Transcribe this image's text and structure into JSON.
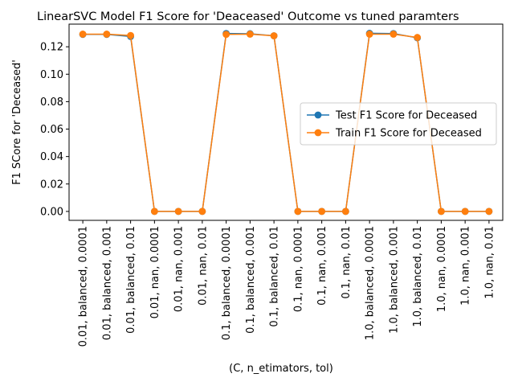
{
  "chart_data": {
    "type": "line",
    "title": "LinearSVC  Model F1 Score for 'Deaceased' Outcome vs tuned paramters",
    "xlabel": "(C, n_etimators, tol)",
    "ylabel": "F1 SCore for 'Deceased'",
    "ylim": [
      -0.0065,
      0.1365
    ],
    "yticks": [
      0.0,
      0.02,
      0.04,
      0.06,
      0.08,
      0.1,
      0.12
    ],
    "ytick_labels": [
      "0.00",
      "0.02",
      "0.04",
      "0.06",
      "0.08",
      "0.10",
      "0.12"
    ],
    "categories": [
      "0.01, balanced, 0.0001",
      "0.01, balanced, 0.001",
      "0.01, balanced, 0.01",
      "0.01, nan, 0.0001",
      "0.01, nan, 0.001",
      "0.01, nan, 0.01",
      "0.1, balanced, 0.0001",
      "0.1, balanced, 0.001",
      "0.1, balanced, 0.01",
      "0.1, nan, 0.0001",
      "0.1, nan, 0.001",
      "0.1, nan, 0.01",
      "1.0, balanced, 0.0001",
      "1.0, balanced, 0.001",
      "1.0, balanced, 0.01",
      "1.0, nan, 0.0001",
      "1.0, nan, 0.001",
      "1.0, nan, 0.01"
    ],
    "series": [
      {
        "name": "Test F1 Score for Deceased",
        "color": "#1f77b4",
        "values": [
          0.129,
          0.129,
          0.1275,
          0.0,
          0.0,
          0.0,
          0.1297,
          0.1295,
          0.128,
          0.0,
          0.0,
          0.0,
          0.1298,
          0.1296,
          0.1265,
          0.0,
          0.0,
          0.0
        ]
      },
      {
        "name": "Train F1 Score for Deceased",
        "color": "#ff7f0e",
        "values": [
          0.1292,
          0.1292,
          0.1282,
          0.0,
          0.0,
          0.0,
          0.129,
          0.1292,
          0.128,
          0.0,
          0.0,
          0.0,
          0.1292,
          0.1292,
          0.1268,
          0.0,
          0.0,
          0.0
        ]
      }
    ],
    "grid": false,
    "legend_position": "center-right"
  }
}
